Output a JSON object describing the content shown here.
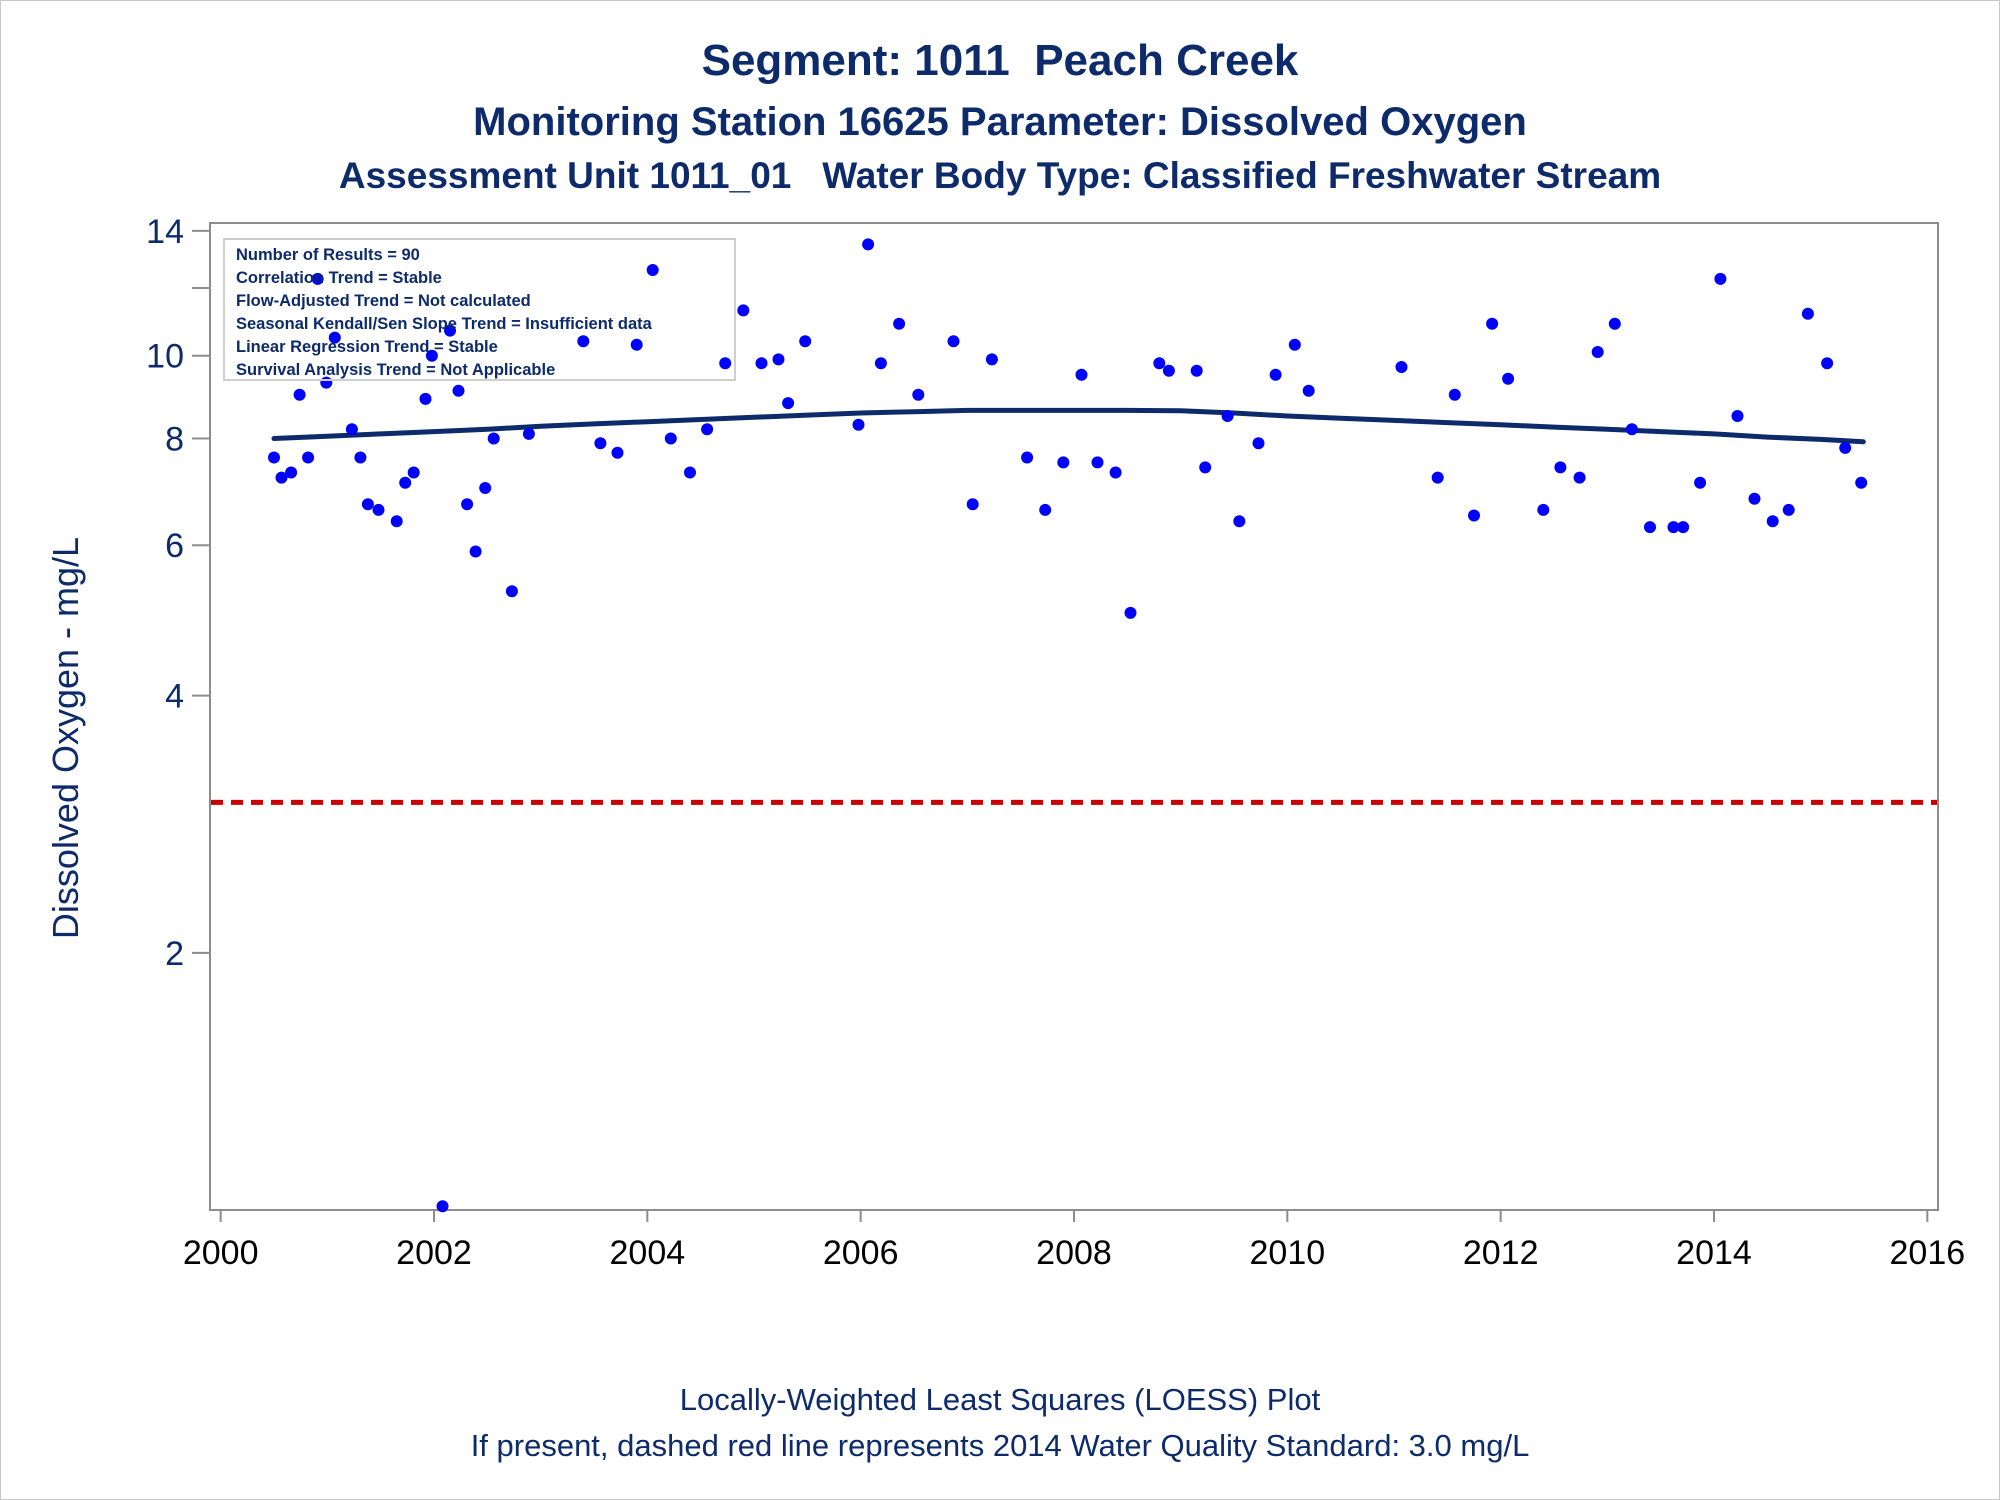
{
  "titles": {
    "line1": "Segment: 1011  Peach Creek",
    "line2": "Monitoring Station 16625 Parameter: Dissolved Oxygen",
    "line3": "Assessment Unit 1011_01   Water Body Type: Classified Freshwater Stream"
  },
  "footnotes": {
    "line1": "Locally-Weighted Least Squares (LOESS) Plot",
    "line2": "If present, dashed red line represents 2014 Water Quality Standard: 3.0 mg/L"
  },
  "stats_box": [
    "Number of Results = 90",
    "Correlation Trend = Stable",
    "Flow-Adjusted Trend = Not calculated",
    "Seasonal Kendall/Sen Slope Trend = Insufficient data",
    "Linear Regression Trend = Stable",
    "Survival Analysis Trend = Not Applicable"
  ],
  "colors": {
    "text": "#0d2a6b",
    "points": "#0000ff",
    "loess": "#0d2a6b",
    "standard": "#cc0000",
    "axis": "#8c8c8c"
  },
  "chart_data": {
    "type": "scatter",
    "ylabel": "Dissolved Oxygen - mg/L",
    "xlabel": "",
    "y_scale": "log",
    "xlim": [
      1999.9,
      2016.1
    ],
    "ylim": [
      1.0,
      14.3
    ],
    "x_ticks": [
      2000,
      2002,
      2004,
      2006,
      2008,
      2010,
      2012,
      2014,
      2016
    ],
    "y_ticks": [
      2,
      4,
      6,
      8,
      10,
      14
    ],
    "y_minor_ticks": [
      12
    ],
    "standard_line": {
      "value": 3.0,
      "style": "dashed"
    },
    "grid": false,
    "series": [
      {
        "kind": "points",
        "points": [
          [
            2000.5,
            7.6
          ],
          [
            2000.57,
            7.2
          ],
          [
            2000.66,
            7.3
          ],
          [
            2000.74,
            9.0
          ],
          [
            2000.82,
            7.6
          ],
          [
            2000.91,
            12.3
          ],
          [
            2000.99,
            9.3
          ],
          [
            2001.07,
            10.5
          ],
          [
            2001.23,
            8.2
          ],
          [
            2001.31,
            7.6
          ],
          [
            2001.38,
            6.7
          ],
          [
            2001.48,
            6.6
          ],
          [
            2001.65,
            6.4
          ],
          [
            2001.73,
            7.1
          ],
          [
            2001.81,
            7.3
          ],
          [
            2001.92,
            8.9
          ],
          [
            2001.98,
            10.0
          ],
          [
            2002.08,
            1.01
          ],
          [
            2002.15,
            10.7
          ],
          [
            2002.23,
            9.1
          ],
          [
            2002.31,
            6.7
          ],
          [
            2002.39,
            5.9
          ],
          [
            2002.48,
            7.0
          ],
          [
            2002.56,
            8.0
          ],
          [
            2002.73,
            5.3
          ],
          [
            2002.89,
            8.1
          ],
          [
            2003.4,
            10.4
          ],
          [
            2003.56,
            7.9
          ],
          [
            2003.72,
            7.7
          ],
          [
            2003.9,
            10.3
          ],
          [
            2004.05,
            12.6
          ],
          [
            2004.22,
            8.0
          ],
          [
            2004.4,
            7.3
          ],
          [
            2004.56,
            8.2
          ],
          [
            2004.73,
            9.8
          ],
          [
            2004.9,
            11.3
          ],
          [
            2005.07,
            9.8
          ],
          [
            2005.23,
            9.9
          ],
          [
            2005.32,
            8.8
          ],
          [
            2005.48,
            10.4
          ],
          [
            2005.98,
            8.3
          ],
          [
            2006.07,
            13.5
          ],
          [
            2006.19,
            9.8
          ],
          [
            2006.36,
            10.9
          ],
          [
            2006.54,
            9.0
          ],
          [
            2006.87,
            10.4
          ],
          [
            2007.05,
            6.7
          ],
          [
            2007.23,
            9.9
          ],
          [
            2007.56,
            7.6
          ],
          [
            2007.73,
            6.6
          ],
          [
            2007.9,
            7.5
          ],
          [
            2008.07,
            9.5
          ],
          [
            2008.22,
            7.5
          ],
          [
            2008.39,
            7.3
          ],
          [
            2008.53,
            5.0
          ],
          [
            2008.8,
            9.8
          ],
          [
            2008.89,
            9.6
          ],
          [
            2009.15,
            9.6
          ],
          [
            2009.23,
            7.4
          ],
          [
            2009.44,
            8.5
          ],
          [
            2009.55,
            6.4
          ],
          [
            2009.73,
            7.9
          ],
          [
            2009.89,
            9.5
          ],
          [
            2010.07,
            10.3
          ],
          [
            2010.2,
            9.1
          ],
          [
            2011.07,
            9.7
          ],
          [
            2011.41,
            7.2
          ],
          [
            2011.57,
            9.0
          ],
          [
            2011.75,
            6.5
          ],
          [
            2011.92,
            10.9
          ],
          [
            2012.07,
            9.4
          ],
          [
            2012.4,
            6.6
          ],
          [
            2012.56,
            7.4
          ],
          [
            2012.74,
            7.2
          ],
          [
            2012.91,
            10.1
          ],
          [
            2013.07,
            10.9
          ],
          [
            2013.23,
            8.2
          ],
          [
            2013.4,
            6.3
          ],
          [
            2013.62,
            6.3
          ],
          [
            2013.71,
            6.3
          ],
          [
            2013.87,
            7.1
          ],
          [
            2014.06,
            12.3
          ],
          [
            2014.22,
            8.5
          ],
          [
            2014.38,
            6.8
          ],
          [
            2014.55,
            6.4
          ],
          [
            2014.7,
            6.6
          ],
          [
            2014.88,
            11.2
          ],
          [
            2015.06,
            9.8
          ],
          [
            2015.23,
            7.8
          ],
          [
            2015.38,
            7.1
          ]
        ]
      },
      {
        "kind": "loess",
        "points": [
          [
            2000.5,
            8.0
          ],
          [
            2001.0,
            8.05
          ],
          [
            2001.5,
            8.1
          ],
          [
            2002.0,
            8.15
          ],
          [
            2002.5,
            8.2
          ],
          [
            2003.0,
            8.27
          ],
          [
            2003.5,
            8.32
          ],
          [
            2004.0,
            8.37
          ],
          [
            2004.5,
            8.42
          ],
          [
            2005.0,
            8.47
          ],
          [
            2005.5,
            8.52
          ],
          [
            2006.0,
            8.57
          ],
          [
            2006.5,
            8.6
          ],
          [
            2007.0,
            8.63
          ],
          [
            2007.5,
            8.63
          ],
          [
            2008.0,
            8.63
          ],
          [
            2008.5,
            8.63
          ],
          [
            2009.0,
            8.62
          ],
          [
            2009.5,
            8.57
          ],
          [
            2010.0,
            8.5
          ],
          [
            2010.5,
            8.45
          ],
          [
            2011.0,
            8.4
          ],
          [
            2011.5,
            8.35
          ],
          [
            2012.0,
            8.3
          ],
          [
            2012.5,
            8.25
          ],
          [
            2013.0,
            8.2
          ],
          [
            2013.5,
            8.15
          ],
          [
            2014.0,
            8.1
          ],
          [
            2014.5,
            8.03
          ],
          [
            2015.0,
            7.98
          ],
          [
            2015.4,
            7.93
          ]
        ]
      }
    ]
  }
}
